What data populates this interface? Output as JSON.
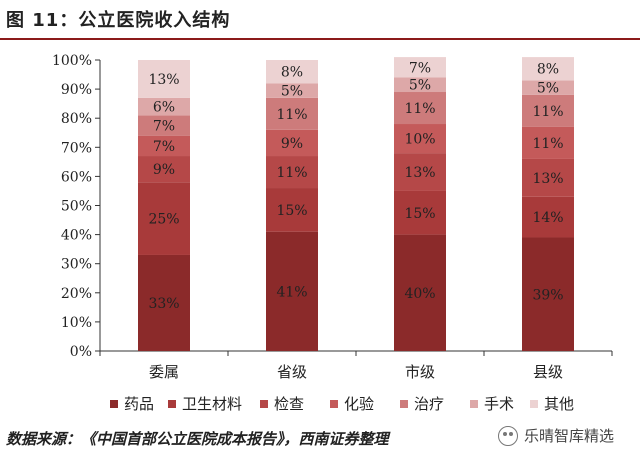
{
  "title": "图 11：公立医院收入结构",
  "source": "数据来源：《中国首部公立医院成本报告》，西南证券整理",
  "watermark": "乐晴智库精选",
  "chart_data": {
    "type": "bar",
    "stacked": true,
    "categories": [
      "委属",
      "省级",
      "市级",
      "县级"
    ],
    "ylim": [
      0,
      100
    ],
    "yticks": [
      "0%",
      "10%",
      "20%",
      "30%",
      "40%",
      "50%",
      "60%",
      "70%",
      "80%",
      "90%",
      "100%"
    ],
    "legend_position": "bottom",
    "series": [
      {
        "name": "药品",
        "color": "#8b2a2a",
        "values": [
          33,
          41,
          40,
          39
        ]
      },
      {
        "name": "卫生材料",
        "color": "#a83a3a",
        "values": [
          25,
          15,
          15,
          14
        ]
      },
      {
        "name": "检查",
        "color": "#b54848",
        "values": [
          9,
          11,
          13,
          13
        ]
      },
      {
        "name": "化验",
        "color": "#c45a5a",
        "values": [
          7,
          9,
          10,
          11
        ]
      },
      {
        "name": "治疗",
        "color": "#cd7b7b",
        "values": [
          7,
          11,
          11,
          11
        ]
      },
      {
        "name": "手术",
        "color": "#dda8a8",
        "values": [
          6,
          5,
          5,
          5
        ]
      },
      {
        "name": "其他",
        "color": "#ecd2d2",
        "values": [
          13,
          8,
          7,
          8
        ]
      }
    ]
  }
}
